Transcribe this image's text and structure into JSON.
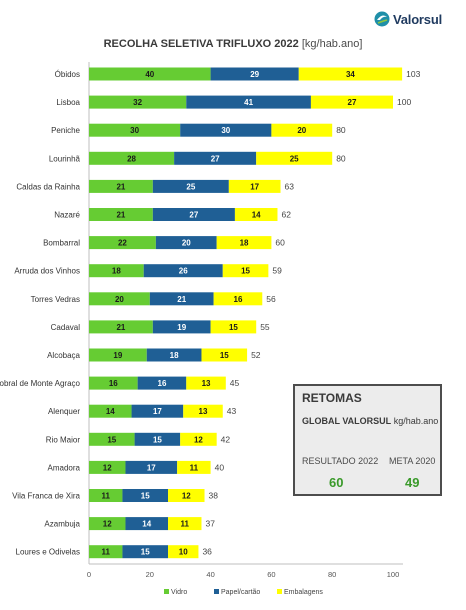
{
  "brand": {
    "name": "Valorsul"
  },
  "title": {
    "main": "RECOLHA SELETIVA TRIFLUXO 2022",
    "unit": "[kg/hab.ano]"
  },
  "retomas": {
    "title": "RETOMAS",
    "global_label": "GLOBAL VALORSUL",
    "global_unit": "kg/hab.ano",
    "resultado_label": "RESULTADO 2022",
    "resultado_value": "60",
    "meta_label": "META 2020",
    "meta_value": "49"
  },
  "chart_data": {
    "type": "bar",
    "orientation": "horizontal",
    "stacked": true,
    "categories": [
      "Óbidos",
      "Lisboa",
      "Peniche",
      "Lourinhã",
      "Caldas da Rainha",
      "Nazaré",
      "Bombarral",
      "Arruda dos Vinhos",
      "Torres Vedras",
      "Cadaval",
      "Alcobaça",
      "Sobral de Monte Agraço",
      "Alenquer",
      "Rio Maior",
      "Amadora",
      "Vila Franca de Xira",
      "Azambuja",
      "Loures e Odivelas"
    ],
    "series": [
      {
        "name": "Vidro",
        "color": "#66cc33",
        "values": [
          40,
          32,
          30,
          28,
          21,
          21,
          22,
          18,
          20,
          21,
          19,
          16,
          14,
          15,
          12,
          11,
          12,
          11
        ]
      },
      {
        "name": "Papel/cartão",
        "color": "#1f5f95",
        "values": [
          29,
          41,
          30,
          27,
          25,
          27,
          20,
          26,
          21,
          19,
          18,
          16,
          17,
          15,
          17,
          15,
          14,
          15
        ]
      },
      {
        "name": "Embalagens",
        "color": "#ffff00",
        "values": [
          34,
          27,
          20,
          25,
          17,
          14,
          18,
          15,
          16,
          15,
          15,
          13,
          13,
          12,
          11,
          12,
          11,
          10
        ]
      }
    ],
    "totals": [
      103,
      100,
      80,
      80,
      63,
      62,
      60,
      59,
      56,
      55,
      52,
      45,
      43,
      42,
      40,
      38,
      37,
      36
    ],
    "xlim": [
      0,
      100
    ],
    "xticks": [
      0,
      20,
      40,
      60,
      80,
      100
    ],
    "grid": false,
    "legend_position": "bottom"
  }
}
